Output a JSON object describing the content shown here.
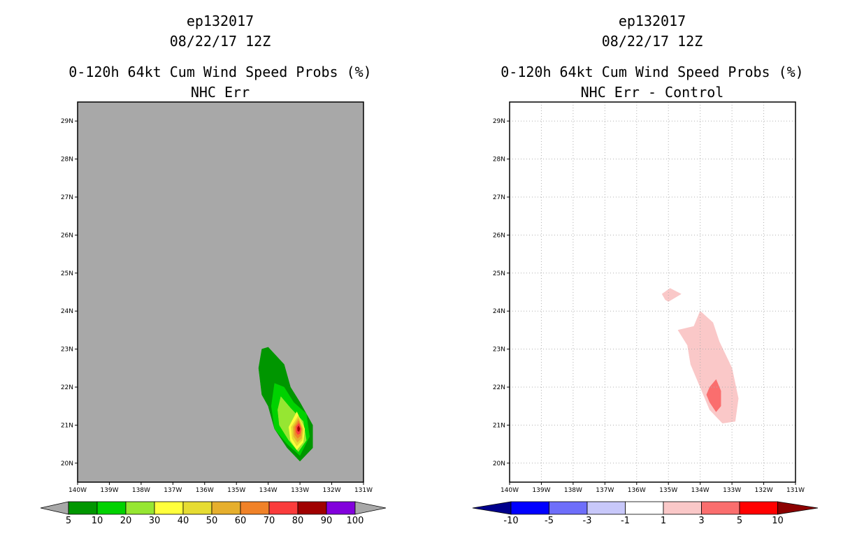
{
  "panels": [
    {
      "storm": "ep132017",
      "datetime": "08/22/17 12Z",
      "product": "0-120h 64kt Cum Wind Speed Probs (%)",
      "subtitle": "NHC Err"
    },
    {
      "storm": "ep132017",
      "datetime": "08/22/17 12Z",
      "product": "0-120h 64kt Cum Wind Speed Probs (%)",
      "subtitle": "NHC Err - Control"
    }
  ],
  "colors": {
    "land_bg": "#a8a8a8",
    "grid": "#b0b0b0"
  },
  "chart_data": [
    {
      "type": "heatmap",
      "panel": "left",
      "title": "NHC Err",
      "x_axis": {
        "range": [
          -140,
          -131
        ],
        "ticks": [
          -140,
          -139,
          -138,
          -137,
          -136,
          -135,
          -134,
          -133,
          -132,
          -131
        ],
        "tick_labels": [
          "140W",
          "139W",
          "138W",
          "137W",
          "136W",
          "135W",
          "134W",
          "133W",
          "132W",
          "131W"
        ]
      },
      "y_axis": {
        "range": [
          19.5,
          29.5
        ],
        "ticks": [
          20,
          21,
          22,
          23,
          24,
          25,
          26,
          27,
          28,
          29
        ],
        "tick_labels": [
          "20N",
          "21N",
          "22N",
          "23N",
          "24N",
          "25N",
          "26N",
          "27N",
          "28N",
          "29N"
        ]
      },
      "grid": false,
      "contours": [
        {
          "level": 5,
          "color": "#009600",
          "points": [
            [
              -134.2,
              23.0
            ],
            [
              -134.0,
              23.05
            ],
            [
              -133.5,
              22.6
            ],
            [
              -133.3,
              22.0
            ],
            [
              -133.0,
              21.6
            ],
            [
              -132.6,
              21.0
            ],
            [
              -132.6,
              20.4
            ],
            [
              -133.0,
              20.05
            ],
            [
              -133.4,
              20.4
            ],
            [
              -133.8,
              20.9
            ],
            [
              -134.0,
              21.5
            ],
            [
              -134.2,
              21.8
            ],
            [
              -134.3,
              22.5
            ]
          ]
        },
        {
          "level": 10,
          "color": "#00d200",
          "points": [
            [
              -133.8,
              22.1
            ],
            [
              -133.5,
              22.0
            ],
            [
              -133.2,
              21.6
            ],
            [
              -132.8,
              21.3
            ],
            [
              -132.7,
              20.7
            ],
            [
              -133.0,
              20.2
            ],
            [
              -133.4,
              20.5
            ],
            [
              -133.8,
              20.9
            ],
            [
              -133.9,
              21.5
            ]
          ]
        },
        {
          "level": 20,
          "color": "#96e632",
          "points": [
            [
              -133.6,
              21.75
            ],
            [
              -133.3,
              21.45
            ],
            [
              -132.9,
              21.1
            ],
            [
              -132.8,
              20.6
            ],
            [
              -133.05,
              20.3
            ],
            [
              -133.35,
              20.6
            ],
            [
              -133.65,
              21.0
            ],
            [
              -133.7,
              21.4
            ]
          ]
        },
        {
          "level": 30,
          "color": "#ffff3c",
          "points": [
            [
              -133.1,
              21.35
            ],
            [
              -132.85,
              20.9
            ],
            [
              -132.9,
              20.55
            ],
            [
              -133.1,
              20.35
            ],
            [
              -133.3,
              20.6
            ],
            [
              -133.35,
              20.95
            ]
          ]
        },
        {
          "level": 40,
          "color": "#e6dc32",
          "points": [
            [
              -133.05,
              21.25
            ],
            [
              -132.88,
              20.9
            ],
            [
              -132.93,
              20.6
            ],
            [
              -133.1,
              20.45
            ],
            [
              -133.25,
              20.65
            ],
            [
              -133.28,
              20.95
            ]
          ]
        },
        {
          "level": 50,
          "color": "#e6af2d",
          "points": [
            [
              -133.05,
              21.18
            ],
            [
              -132.92,
              20.9
            ],
            [
              -132.95,
              20.65
            ],
            [
              -133.08,
              20.55
            ],
            [
              -133.2,
              20.7
            ],
            [
              -133.22,
              20.95
            ]
          ]
        },
        {
          "level": 60,
          "color": "#f08228",
          "points": [
            [
              -133.04,
              21.12
            ],
            [
              -132.95,
              20.9
            ],
            [
              -132.98,
              20.72
            ],
            [
              -133.07,
              20.65
            ],
            [
              -133.16,
              20.75
            ],
            [
              -133.17,
              20.95
            ]
          ]
        },
        {
          "level": 70,
          "color": "#fa3c3c",
          "points": [
            [
              -133.03,
              21.05
            ],
            [
              -132.97,
              20.9
            ],
            [
              -133.0,
              20.78
            ],
            [
              -133.07,
              20.75
            ],
            [
              -133.12,
              20.82
            ],
            [
              -133.12,
              20.96
            ]
          ]
        },
        {
          "level": 80,
          "color": "#a00000",
          "points": [
            [
              -133.04,
              20.98
            ],
            [
              -133.0,
              20.9
            ],
            [
              -133.03,
              20.83
            ],
            [
              -133.07,
              20.85
            ],
            [
              -133.08,
              20.93
            ]
          ]
        }
      ],
      "colorbar": {
        "levels": [
          "5",
          "10",
          "20",
          "30",
          "40",
          "50",
          "60",
          "70",
          "80",
          "90",
          "100"
        ],
        "colors": [
          "#009600",
          "#00d200",
          "#96e632",
          "#ffff3c",
          "#e6dc32",
          "#e6af2d",
          "#f08228",
          "#fa3c3c",
          "#a00000",
          "#8200dc"
        ],
        "under_color": "#a8a8a8",
        "over_color": "#a8a8a8"
      }
    },
    {
      "type": "heatmap",
      "panel": "right",
      "title": "NHC Err - Control",
      "x_axis": {
        "range": [
          -140,
          -131
        ],
        "ticks": [
          -140,
          -139,
          -138,
          -137,
          -136,
          -135,
          -134,
          -133,
          -132,
          -131
        ],
        "tick_labels": [
          "140W",
          "139W",
          "138W",
          "137W",
          "136W",
          "135W",
          "134W",
          "133W",
          "132W",
          "131W"
        ]
      },
      "y_axis": {
        "range": [
          19.5,
          29.5
        ],
        "ticks": [
          20,
          21,
          22,
          23,
          24,
          25,
          26,
          27,
          28,
          29
        ],
        "tick_labels": [
          "20N",
          "21N",
          "22N",
          "23N",
          "24N",
          "25N",
          "26N",
          "27N",
          "28N",
          "29N"
        ]
      },
      "grid": true,
      "contours": [
        {
          "level": 1,
          "color": "#fac8c8",
          "points": [
            [
              -135.2,
              24.45
            ],
            [
              -134.95,
              24.6
            ],
            [
              -134.6,
              24.45
            ],
            [
              -135.0,
              24.25
            ],
            [
              -135.1,
              24.3
            ]
          ]
        },
        {
          "level": 1,
          "color": "#fac8c8",
          "points": [
            [
              -134.2,
              23.6
            ],
            [
              -134.0,
              24.0
            ],
            [
              -133.6,
              23.7
            ],
            [
              -133.4,
              23.2
            ],
            [
              -133.0,
              22.5
            ],
            [
              -132.8,
              21.7
            ],
            [
              -132.9,
              21.1
            ],
            [
              -133.3,
              21.05
            ],
            [
              -133.7,
              21.4
            ],
            [
              -134.0,
              22.0
            ],
            [
              -134.3,
              22.6
            ],
            [
              -134.4,
              23.1
            ],
            [
              -134.7,
              23.5
            ]
          ]
        },
        {
          "level": 3,
          "color": "#fa6e6e",
          "points": [
            [
              -133.7,
              22.0
            ],
            [
              -133.5,
              22.2
            ],
            [
              -133.35,
              21.9
            ],
            [
              -133.35,
              21.5
            ],
            [
              -133.5,
              21.35
            ],
            [
              -133.7,
              21.6
            ],
            [
              -133.8,
              21.8
            ]
          ]
        }
      ],
      "colorbar": {
        "levels": [
          "-10",
          "-5",
          "-3",
          "-1",
          "1",
          "3",
          "5",
          "10"
        ],
        "colors": [
          "#0000ff",
          "#6e6efa",
          "#c8c8fa",
          "#ffffff",
          "#fac8c8",
          "#fa6e6e",
          "#ff0000"
        ],
        "under_color": "#00008c",
        "over_color": "#8c0000"
      }
    }
  ]
}
